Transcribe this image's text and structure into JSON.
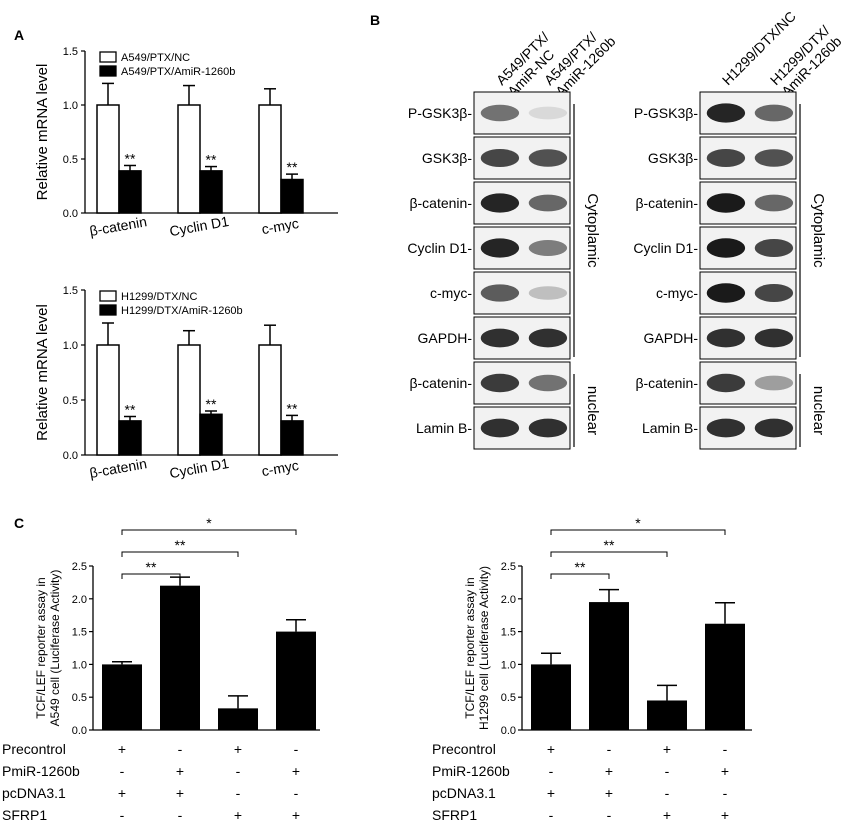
{
  "panel_labels": [
    "A",
    "B",
    "C"
  ],
  "chart_data": [
    {
      "id": "A-top",
      "type": "bar",
      "ylabel": "Relative mRNA level",
      "ylim": [
        0,
        1.5
      ],
      "yticks": [
        "0.0",
        "0.5",
        "1.0",
        "1.5"
      ],
      "categories": [
        "β-catenin",
        "Cyclin D1",
        "c-myc"
      ],
      "series": [
        {
          "name": "A549/PTX/NC",
          "fill": "#ffffff",
          "values": [
            1.0,
            1.0,
            1.0
          ],
          "errors": [
            0.2,
            0.18,
            0.15
          ],
          "sig": [
            "",
            "",
            ""
          ]
        },
        {
          "name": "A549/PTX/AmiR-1260b",
          "fill": "#000000",
          "values": [
            0.39,
            0.39,
            0.31
          ],
          "errors": [
            0.05,
            0.04,
            0.05
          ],
          "sig": [
            "**",
            "**",
            "**"
          ]
        }
      ]
    },
    {
      "id": "A-bottom",
      "type": "bar",
      "ylabel": "Relative mRNA level",
      "ylim": [
        0,
        1.5
      ],
      "yticks": [
        "0.0",
        "0.5",
        "1.0",
        "1.5"
      ],
      "categories": [
        "β-catenin",
        "Cyclin D1",
        "c-myc"
      ],
      "series": [
        {
          "name": "H1299/DTX/NC",
          "fill": "#ffffff",
          "values": [
            1.0,
            1.0,
            1.0
          ],
          "errors": [
            0.2,
            0.13,
            0.18
          ],
          "sig": [
            "",
            "",
            ""
          ]
        },
        {
          "name": "H1299/DTX/AmiR-1260b",
          "fill": "#000000",
          "values": [
            0.31,
            0.37,
            0.31
          ],
          "errors": [
            0.04,
            0.03,
            0.05
          ],
          "sig": [
            "**",
            "**",
            "**"
          ]
        }
      ]
    },
    {
      "id": "C-left",
      "type": "bar",
      "ylabel": [
        "TCF/LEF reporter assay in",
        "A549 cell (Luciferase Activity)"
      ],
      "ylim": [
        0,
        2.5
      ],
      "yticks": [
        "0.0",
        "0.5",
        "1.0",
        "1.5",
        "2.0",
        "2.5"
      ],
      "values": [
        1.0,
        2.2,
        0.33,
        1.5
      ],
      "errors": [
        0.04,
        0.13,
        0.19,
        0.18
      ],
      "brackets": [
        {
          "from": 0,
          "to": 1,
          "label": "**"
        },
        {
          "from": 0,
          "to": 2,
          "label": "**"
        },
        {
          "from": 0,
          "to": 3,
          "label": "*"
        }
      ],
      "conditions": [
        {
          "label": "Precontrol",
          "marks": [
            "+",
            "-",
            "+",
            "-"
          ]
        },
        {
          "label": "PmiR-1260b",
          "marks": [
            "-",
            "+",
            "-",
            "+"
          ]
        },
        {
          "label": "pcDNA3.1",
          "marks": [
            "+",
            "+",
            "-",
            "-"
          ]
        },
        {
          "label": "SFRP1",
          "marks": [
            "-",
            "-",
            "+",
            "+"
          ]
        }
      ]
    },
    {
      "id": "C-right",
      "type": "bar",
      "ylabel": [
        "TCF/LEF reporter assay in",
        "H1299 cell (Luciferase Activity)"
      ],
      "ylim": [
        0,
        2.5
      ],
      "yticks": [
        "0.0",
        "0.5",
        "1.0",
        "1.5",
        "2.0",
        "2.5"
      ],
      "values": [
        1.0,
        1.95,
        0.45,
        1.62
      ],
      "errors": [
        0.17,
        0.19,
        0.23,
        0.32
      ],
      "brackets": [
        {
          "from": 0,
          "to": 1,
          "label": "**"
        },
        {
          "from": 0,
          "to": 2,
          "label": "**"
        },
        {
          "from": 0,
          "to": 3,
          "label": "*"
        }
      ],
      "conditions": [
        {
          "label": "Precontrol",
          "marks": [
            "+",
            "-",
            "+",
            "-"
          ]
        },
        {
          "label": "PmiR-1260b",
          "marks": [
            "-",
            "+",
            "-",
            "+"
          ]
        },
        {
          "label": "pcDNA3.1",
          "marks": [
            "+",
            "+",
            "-",
            "-"
          ]
        },
        {
          "label": "SFRP1",
          "marks": [
            "-",
            "-",
            "+",
            "+"
          ]
        }
      ]
    }
  ],
  "blots": [
    {
      "id": "B-left",
      "lanes": [
        "A549/PTX/\nAmiR-NC",
        "A549/PTX/\nAmiR-1260b"
      ],
      "rows": [
        {
          "label": "P-GSK3β-",
          "intensity": [
            0.55,
            0.08
          ]
        },
        {
          "label": "GSK3β-",
          "intensity": [
            0.75,
            0.7
          ]
        },
        {
          "label": "β-catenin-",
          "intensity": [
            0.9,
            0.6
          ]
        },
        {
          "label": "Cyclin D1-",
          "intensity": [
            0.9,
            0.5
          ]
        },
        {
          "label": "c-myc-",
          "intensity": [
            0.65,
            0.2
          ]
        },
        {
          "label": "GAPDH-",
          "intensity": [
            0.85,
            0.85
          ]
        },
        {
          "label": "β-catenin-",
          "intensity": [
            0.8,
            0.55
          ]
        },
        {
          "label": "Lamin B-",
          "intensity": [
            0.85,
            0.85
          ]
        }
      ],
      "groups": [
        {
          "label": "Cytoplamic",
          "rows": [
            0,
            5
          ]
        },
        {
          "label": "nuclear",
          "rows": [
            6,
            7
          ]
        }
      ]
    },
    {
      "id": "B-right",
      "lanes": [
        "H1299/DTX/NC",
        "H1299/DTX/\nAmiR-1260b"
      ],
      "rows": [
        {
          "label": "P-GSK3β-",
          "intensity": [
            0.9,
            0.6
          ]
        },
        {
          "label": "GSK3β-",
          "intensity": [
            0.75,
            0.7
          ]
        },
        {
          "label": "β-catenin-",
          "intensity": [
            0.95,
            0.6
          ]
        },
        {
          "label": "Cyclin D1-",
          "intensity": [
            0.95,
            0.75
          ]
        },
        {
          "label": "c-myc-",
          "intensity": [
            0.95,
            0.75
          ]
        },
        {
          "label": "GAPDH-",
          "intensity": [
            0.85,
            0.85
          ]
        },
        {
          "label": "β-catenin-",
          "intensity": [
            0.8,
            0.35
          ]
        },
        {
          "label": "Lamin B-",
          "intensity": [
            0.85,
            0.85
          ]
        }
      ],
      "groups": [
        {
          "label": "Cytoplamic",
          "rows": [
            0,
            5
          ]
        },
        {
          "label": "nuclear",
          "rows": [
            6,
            7
          ]
        }
      ]
    }
  ]
}
